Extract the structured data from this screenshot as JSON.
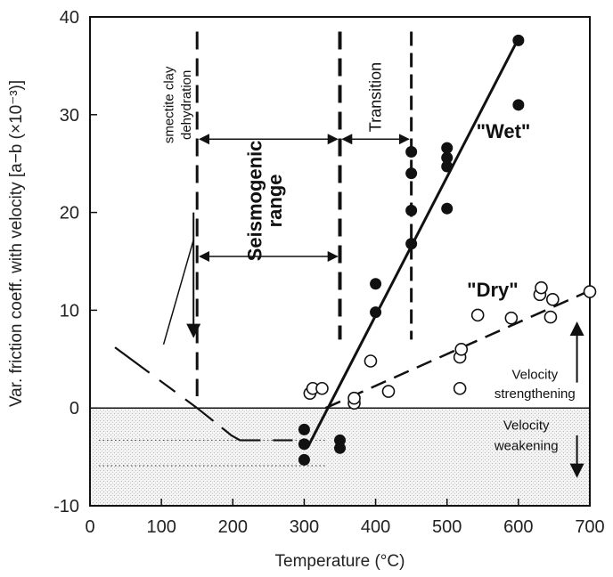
{
  "chart_data": {
    "type": "scatter",
    "xlabel": "Temperature (°C)",
    "ylabel": "Var. friction coeff. with velocity [a−b (×10⁻³)]",
    "xlim": [
      0,
      700
    ],
    "ylim": [
      -10,
      40
    ],
    "x_ticks": [
      0,
      100,
      200,
      300,
      400,
      500,
      600,
      700
    ],
    "y_ticks": [
      -10,
      0,
      10,
      20,
      30,
      40
    ],
    "grid": false,
    "series": [
      {
        "name": "\"Wet\"",
        "marker": "filled-circle",
        "points": [
          [
            300,
            -2.2
          ],
          [
            300,
            -3.7
          ],
          [
            300,
            -5.3
          ],
          [
            350,
            -3.3
          ],
          [
            350,
            -4.1
          ],
          [
            400,
            9.8
          ],
          [
            400,
            12.7
          ],
          [
            450,
            16.8
          ],
          [
            450,
            20.2
          ],
          [
            450,
            24.0
          ],
          [
            450,
            26.2
          ],
          [
            500,
            20.4
          ],
          [
            500,
            24.7
          ],
          [
            500,
            25.6
          ],
          [
            500,
            26.6
          ],
          [
            600,
            31.0
          ],
          [
            600,
            37.6
          ]
        ],
        "fit": [
          [
            305,
            -4.0
          ],
          [
            600,
            37.8
          ]
        ]
      },
      {
        "name": "\"Dry\"",
        "marker": "open-circle",
        "points": [
          [
            308,
            1.5
          ],
          [
            312,
            2.0
          ],
          [
            325,
            2.0
          ],
          [
            370,
            0.5
          ],
          [
            370,
            1.0
          ],
          [
            393,
            4.8
          ],
          [
            418,
            1.7
          ],
          [
            518,
            2.0
          ],
          [
            518,
            5.2
          ],
          [
            520,
            6.0
          ],
          [
            543,
            9.5
          ],
          [
            590,
            9.2
          ],
          [
            630,
            11.6
          ],
          [
            632,
            12.3
          ],
          [
            645,
            9.3
          ],
          [
            648,
            11.1
          ],
          [
            700,
            11.9
          ]
        ],
        "fit": [
          [
            330,
            0
          ],
          [
            700,
            12
          ]
        ]
      }
    ],
    "low_temp_trend": [
      [
        35,
        6.2
      ],
      [
        150,
        0.0
      ],
      [
        198,
        -2.8
      ],
      [
        210,
        -3.3
      ],
      [
        295,
        -3.3
      ]
    ],
    "shaded_region": {
      "y_from": 0,
      "y_to": -10
    },
    "dotted_levels": [
      -3.3,
      -5.9
    ],
    "vertical_dashed_lines": [
      150,
      350,
      450
    ],
    "annotations": {
      "smectite": [
        "smectite clay",
        "dehydration"
      ],
      "seismogenic": [
        "Seismogenic",
        "range"
      ],
      "transition": "Transition",
      "wet": "\"Wet\"",
      "dry": "\"Dry\"",
      "strengthening": [
        "Velocity",
        "strengthening"
      ],
      "weakening": [
        "Velocity",
        "weakening"
      ]
    }
  }
}
